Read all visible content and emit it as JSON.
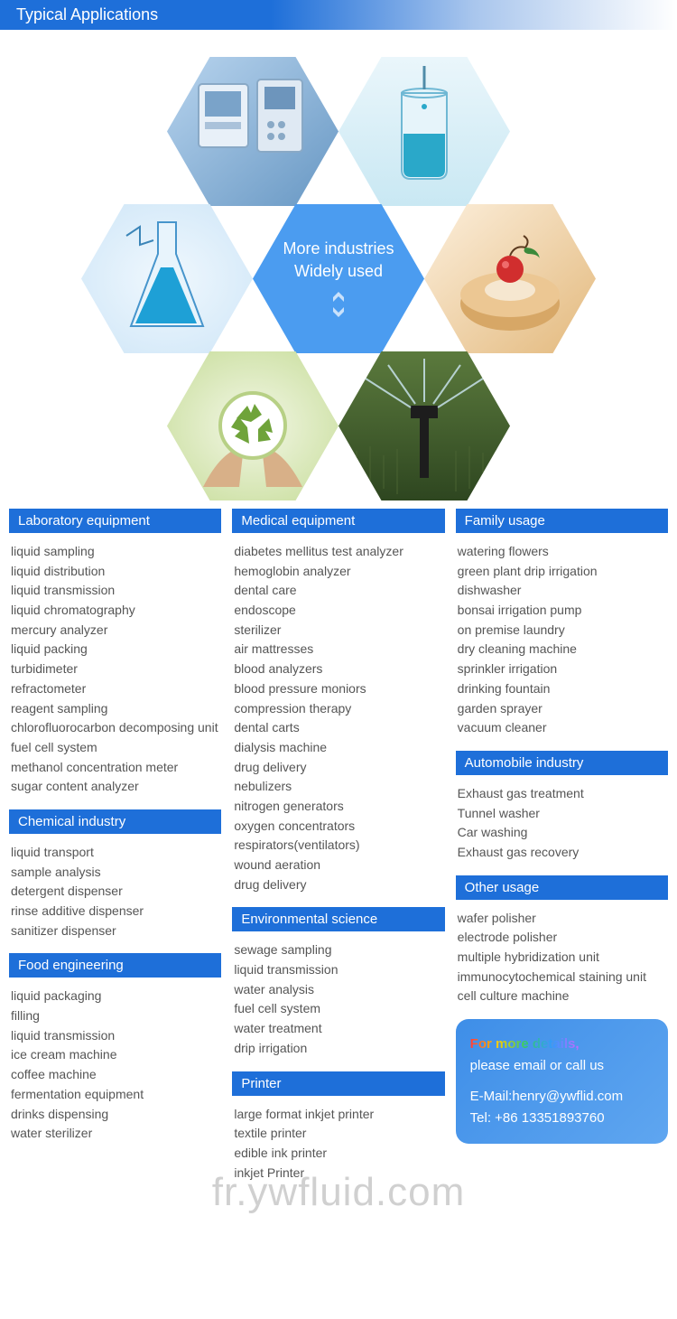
{
  "title": "Typical Applications",
  "hex": {
    "center_line1": "More industries",
    "center_line2": "Widely used",
    "colors": {
      "center_bg": "#4b9cf0",
      "medical": {
        "a": "#b8d4ee",
        "b": "#6797c3"
      },
      "beaker": {
        "a": "#c9e8f3",
        "b": "#3bb9d6",
        "liquid": "#2aa8c9"
      },
      "flask": {
        "a": "#d8eefb",
        "b": "#1f7fbf",
        "liquid": "#1ea0d6"
      },
      "dessert": {
        "a": "#f6dfc2",
        "b": "#d7a766",
        "cherry": "#d12e2e",
        "leaf": "#3b8a3b"
      },
      "recycle": {
        "a": "#e6efc8",
        "b": "#8fb756",
        "symbol": "#6fa33a"
      },
      "sprinkler": {
        "a": "#5b7a3d",
        "b": "#2e4620",
        "sprink": "#cfe9f7"
      }
    }
  },
  "columns": [
    [
      {
        "header": "Laboratory equipment",
        "items": [
          "liquid sampling",
          "liquid distribution",
          "liquid transmission",
          "liquid chromatography",
          "mercury analyzer",
          "liquid packing",
          "turbidimeter",
          "refractometer",
          "reagent sampling",
          "chlorofluorocarbon decomposing unit",
          "fuel cell system",
          "methanol concentration meter",
          "sugar content analyzer"
        ]
      },
      {
        "header": "Chemical industry",
        "items": [
          "liquid transport",
          "sample analysis",
          "detergent dispenser",
          "rinse additive dispenser",
          "sanitizer dispenser"
        ]
      },
      {
        "header": "Food engineering",
        "items": [
          "liquid packaging",
          "filling",
          "liquid transmission",
          "ice cream machine",
          "coffee machine",
          "fermentation equipment",
          "drinks dispensing",
          "water sterilizer"
        ]
      }
    ],
    [
      {
        "header": "Medical equipment",
        "items": [
          "diabetes mellitus test analyzer",
          "hemoglobin analyzer",
          "dental care",
          "endoscope",
          "sterilizer",
          "air mattresses",
          "blood analyzers",
          "blood pressure moniors",
          "compression therapy",
          "dental carts",
          "dialysis machine",
          "drug delivery",
          "nebulizers",
          "nitrogen generators",
          "oxygen concentrators",
          "respirators(ventilators)",
          "wound aeration",
          "drug delivery"
        ]
      },
      {
        "header": "Environmental science",
        "items": [
          "sewage sampling",
          "liquid transmission",
          "water analysis",
          "fuel cell system",
          "water treatment",
          "drip irrigation"
        ]
      },
      {
        "header": "Printer",
        "items": [
          "large format inkjet printer",
          "textile printer",
          "edible ink printer",
          "inkjet Printer"
        ]
      }
    ],
    [
      {
        "header": "Family usage",
        "items": [
          "watering flowers",
          "green plant drip irrigation",
          "dishwasher",
          "bonsai irrigation pump",
          "on premise laundry",
          "dry cleaning machine",
          "sprinkler irrigation",
          "drinking fountain",
          "garden sprayer",
          "vacuum cleaner"
        ]
      },
      {
        "header": "Automobile industry",
        "items": [
          "Exhaust gas treatment",
          "Tunnel washer",
          "Car washing",
          "Exhaust gas recovery"
        ]
      },
      {
        "header": "Other usage",
        "items": [
          "wafer polisher",
          "electrode polisher",
          "multiple hybridization unit",
          "immunocytochemical staining unit",
          "cell culture machine"
        ]
      }
    ]
  ],
  "contact": {
    "headline1": "For more details,",
    "headline2": "please email or call us",
    "email_label": "E-Mail:",
    "email": "henry@ywflid.com",
    "tel_label": "Tel:",
    "tel": "+86 13351893760"
  },
  "watermark": "fr.ywfluid.com"
}
